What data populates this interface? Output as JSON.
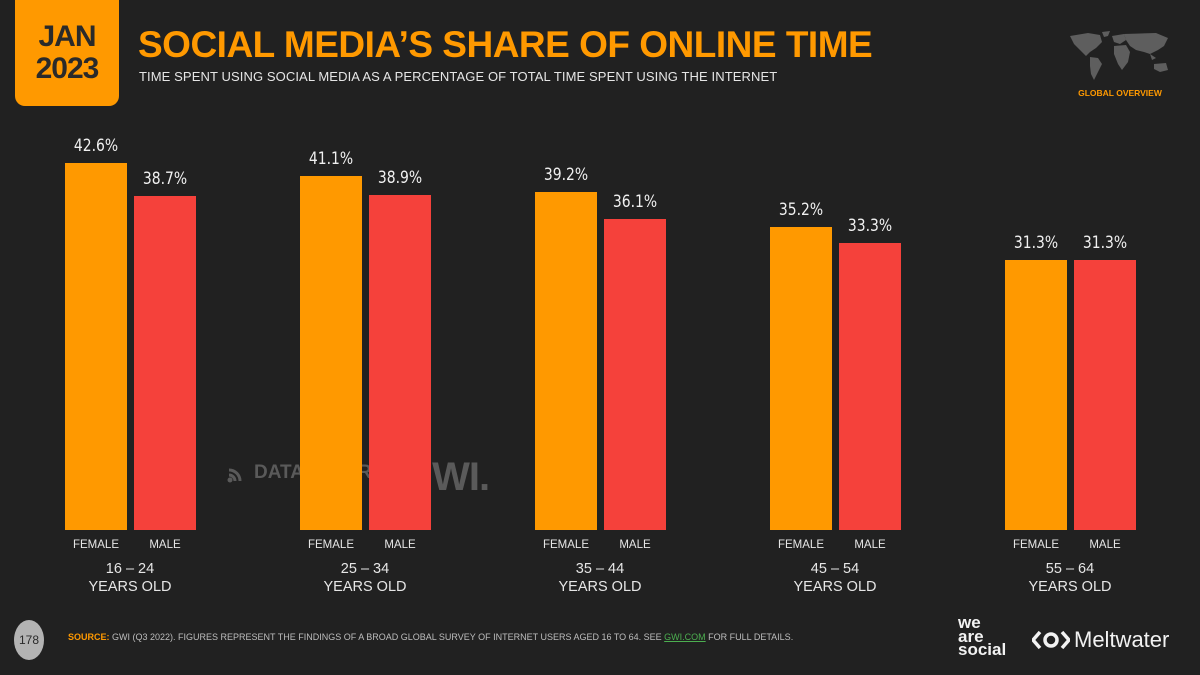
{
  "header": {
    "date_line1": "JAN",
    "date_line2": "2023",
    "title": "SOCIAL MEDIA’S SHARE OF ONLINE TIME",
    "subtitle": "TIME SPENT USING SOCIAL MEDIA AS A PERCENTAGE OF TOTAL TIME SPENT USING THE INTERNET",
    "region_label": "GLOBAL OVERVIEW"
  },
  "colors": {
    "female": "#ff9900",
    "male": "#f5413b",
    "accent": "#ff9900",
    "background": "#212121"
  },
  "chart_data": {
    "type": "bar",
    "title": "SOCIAL MEDIA’S SHARE OF ONLINE TIME",
    "subtitle": "TIME SPENT USING SOCIAL MEDIA AS A PERCENTAGE OF TOTAL TIME SPENT USING THE INTERNET",
    "categories": [
      "16 – 24 YEARS OLD",
      "25 – 34 YEARS OLD",
      "35 – 44 YEARS OLD",
      "45 – 54 YEARS OLD",
      "55 – 64 YEARS OLD"
    ],
    "series": [
      {
        "name": "FEMALE",
        "values": [
          42.6,
          41.1,
          39.2,
          35.2,
          31.3
        ],
        "labels": [
          "42.6%",
          "41.1%",
          "39.2%",
          "35.2%",
          "31.3%"
        ]
      },
      {
        "name": "MALE",
        "values": [
          38.7,
          38.9,
          36.1,
          33.3,
          31.3
        ],
        "labels": [
          "38.7%",
          "38.9%",
          "36.1%",
          "33.3%",
          "31.3%"
        ]
      }
    ],
    "xlabel": "",
    "ylabel": "",
    "ylim": [
      0,
      45
    ],
    "grid": false,
    "legend": "per-bar labels"
  },
  "groups": [
    {
      "range": "16 – 24",
      "suffix": "YEARS OLD"
    },
    {
      "range": "25 – 34",
      "suffix": "YEARS OLD"
    },
    {
      "range": "35 – 44",
      "suffix": "YEARS OLD"
    },
    {
      "range": "45 – 54",
      "suffix": "YEARS OLD"
    },
    {
      "range": "55 – 64",
      "suffix": "YEARS OLD"
    }
  ],
  "gender_labels": {
    "female": "FEMALE",
    "male": "MALE"
  },
  "watermarks": {
    "datareportal": "DATAREPORTAL",
    "gwi": "GWI."
  },
  "footer": {
    "page_number": "178",
    "source_label": "SOURCE:",
    "source_text": " GWI (Q3 2022). FIGURES REPRESENT THE FINDINGS OF A BROAD GLOBAL SURVEY OF INTERNET USERS AGED 16 TO 64. SEE ",
    "source_link": "GWI.COM",
    "source_tail": " FOR FULL DETAILS.",
    "brand1_l1": "we",
    "brand1_l2": "are",
    "brand1_l3": "social",
    "brand2": "Meltwater"
  }
}
